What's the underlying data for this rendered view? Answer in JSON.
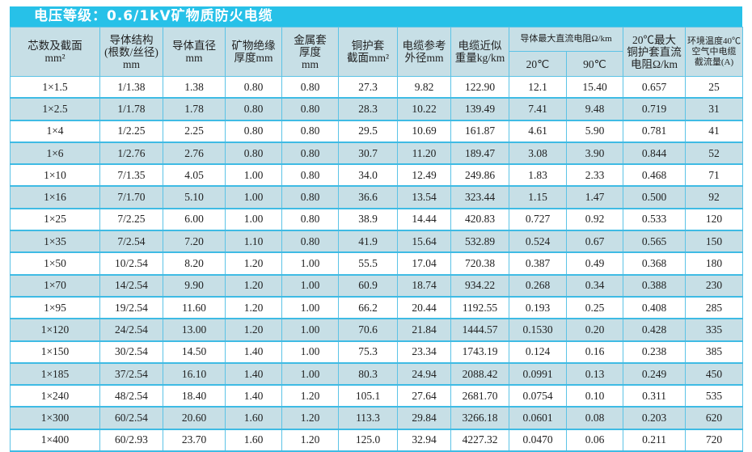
{
  "title": "电压等级：0.6/1kV矿物质防火电缆",
  "headers": {
    "section": [
      "芯数及截面",
      "mm²"
    ],
    "structure": [
      "导体结构",
      "(根数/丝径)",
      "mm"
    ],
    "diameter": [
      "导体直径",
      "mm"
    ],
    "insulation": [
      "矿物绝缘",
      "厚度mm"
    ],
    "sheath": [
      "金属套",
      "厚度",
      "mm"
    ],
    "copper_sheath": [
      "铜护套",
      "截面mm²"
    ],
    "outer_diameter": [
      "电缆参考",
      "外径mm"
    ],
    "weight": [
      "电缆近似",
      "重量kg/km"
    ],
    "resistance_group": "导体最大直流电阻Ω/km",
    "r20": "20℃",
    "r90": "90℃",
    "sheath_resistance": [
      "20℃最大",
      "铜护套直流",
      "电阻Ω/km"
    ],
    "current": [
      "环境温度40℃",
      "空气中电缆",
      "截流量(A)"
    ]
  },
  "rows": [
    [
      "1×1.5",
      "1/1.38",
      "1.38",
      "0.80",
      "0.80",
      "27.3",
      "9.82",
      "122.90",
      "12.1",
      "15.40",
      "0.657",
      "25"
    ],
    [
      "1×2.5",
      "1/1.78",
      "1.78",
      "0.80",
      "0.80",
      "28.3",
      "10.22",
      "139.49",
      "7.41",
      "9.48",
      "0.719",
      "31"
    ],
    [
      "1×4",
      "1/2.25",
      "2.25",
      "0.80",
      "0.80",
      "29.5",
      "10.69",
      "161.87",
      "4.61",
      "5.90",
      "0.781",
      "41"
    ],
    [
      "1×6",
      "1/2.76",
      "2.76",
      "0.80",
      "0.80",
      "30.7",
      "11.20",
      "189.47",
      "3.08",
      "3.90",
      "0.844",
      "52"
    ],
    [
      "1×10",
      "7/1.35",
      "4.05",
      "1.00",
      "0.80",
      "34.0",
      "12.49",
      "249.86",
      "1.83",
      "2.33",
      "0.468",
      "71"
    ],
    [
      "1×16",
      "7/1.70",
      "5.10",
      "1.00",
      "0.80",
      "36.6",
      "13.54",
      "323.44",
      "1.15",
      "1.47",
      "0.500",
      "92"
    ],
    [
      "1×25",
      "7/2.25",
      "6.00",
      "1.00",
      "0.80",
      "38.9",
      "14.44",
      "420.83",
      "0.727",
      "0.92",
      "0.533",
      "120"
    ],
    [
      "1×35",
      "7/2.54",
      "7.20",
      "1.10",
      "0.80",
      "41.9",
      "15.64",
      "532.89",
      "0.524",
      "0.67",
      "0.565",
      "150"
    ],
    [
      "1×50",
      "10/2.54",
      "8.20",
      "1.20",
      "1.00",
      "55.5",
      "17.04",
      "720.38",
      "0.387",
      "0.49",
      "0.368",
      "180"
    ],
    [
      "1×70",
      "14/2.54",
      "9.90",
      "1.20",
      "1.00",
      "60.9",
      "18.74",
      "934.22",
      "0.268",
      "0.34",
      "0.388",
      "230"
    ],
    [
      "1×95",
      "19/2.54",
      "11.60",
      "1.20",
      "1.00",
      "66.2",
      "20.44",
      "1192.55",
      "0.193",
      "0.25",
      "0.408",
      "285"
    ],
    [
      "1×120",
      "24/2.54",
      "13.00",
      "1.20",
      "1.00",
      "70.6",
      "21.84",
      "1444.57",
      "0.1530",
      "0.20",
      "0.428",
      "335"
    ],
    [
      "1×150",
      "30/2.54",
      "14.50",
      "1.40",
      "1.00",
      "75.3",
      "23.34",
      "1743.19",
      "0.124",
      "0.16",
      "0.238",
      "385"
    ],
    [
      "1×185",
      "37/2.54",
      "16.10",
      "1.40",
      "1.00",
      "80.3",
      "24.94",
      "2088.42",
      "0.0991",
      "0.13",
      "0.249",
      "450"
    ],
    [
      "1×240",
      "48/2.54",
      "18.40",
      "1.40",
      "1.20",
      "105.1",
      "27.64",
      "2681.70",
      "0.0754",
      "0.10",
      "0.311",
      "535"
    ],
    [
      "1×300",
      "60/2.54",
      "20.60",
      "1.60",
      "1.20",
      "113.3",
      "29.84",
      "3266.18",
      "0.0601",
      "0.08",
      "0.203",
      "620"
    ],
    [
      "1×400",
      "60/2.93",
      "23.70",
      "1.60",
      "1.20",
      "125.0",
      "32.94",
      "4227.32",
      "0.0470",
      "0.06",
      "0.211",
      "720"
    ]
  ],
  "colors": {
    "title_bar": "#27c1e8",
    "header_bg": "#c7dfe6",
    "alt_row": "#c7dfe6",
    "border": "#5cc3e6"
  }
}
